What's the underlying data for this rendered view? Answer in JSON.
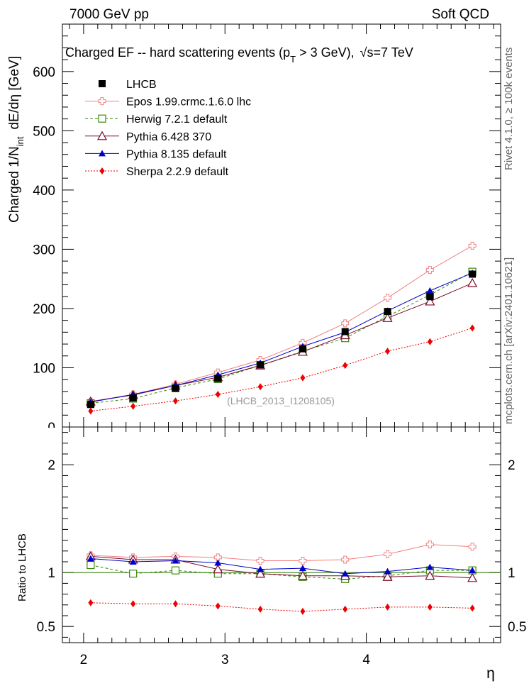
{
  "header": {
    "left": "7000 GeV pp",
    "right": "Soft QCD"
  },
  "side_labels": {
    "top": "Rivet 4.1.0, ≥ 100k events",
    "bottom": "mcplots.cern.ch [arXiv:2401.10621]"
  },
  "chart_data": {
    "type": "line",
    "title_main": "Charged EF -- hard scattering events (p",
    "title_sub": "T",
    "title_end": " > 3 GeV),",
    "title_energy": "√s=7 TeV",
    "ylabel_main": "Charged 1/N",
    "ylabel_sub": "int",
    "ylabel_end": "dE/dη [GeV]",
    "ratio_ylabel": "Ratio to LHCB",
    "xlabel": "η",
    "watermark": "(LHCB_2013_I1208105)",
    "xlim": [
      1.85,
      4.95
    ],
    "ylim": [
      0,
      680
    ],
    "ratio_ylim": [
      0.35,
      2.35
    ],
    "x_ticks": [
      "2",
      "3",
      "4"
    ],
    "y_ticks": [
      "0",
      "100",
      "200",
      "300",
      "400",
      "500",
      "600"
    ],
    "ratio_ticks": [
      "0.5",
      "1",
      "2"
    ],
    "x": [
      2.05,
      2.35,
      2.65,
      2.95,
      3.25,
      3.55,
      3.85,
      4.15,
      4.45,
      4.75
    ],
    "series": [
      {
        "name": "LHCB",
        "color": "#000000",
        "marker": "square-filled",
        "line": "none",
        "values": [
          38,
          49,
          65,
          82,
          105,
          132,
          161,
          195,
          220,
          258
        ]
      },
      {
        "name": "Epos 1.99.crmc.1.6.0 lhc",
        "color": "#f08080",
        "marker": "cross-open",
        "line": "solid",
        "values": [
          43,
          55,
          72,
          92,
          113,
          142,
          175,
          218,
          265,
          306
        ]
      },
      {
        "name": "Herwig 7.2.1 default",
        "color": "#3a8a0c",
        "marker": "square-open",
        "line": "dashed",
        "values": [
          40,
          48,
          66,
          81,
          104,
          128,
          150,
          187,
          223,
          262
        ]
      },
      {
        "name": "Pythia 6.428 370",
        "color": "#7a0a2a",
        "marker": "triangle-open",
        "line": "solid",
        "values": [
          43,
          54,
          70,
          84,
          104,
          127,
          155,
          184,
          212,
          243
        ]
      },
      {
        "name": "Pythia 8.135 default",
        "color": "#0000cc",
        "marker": "triangle-filled",
        "line": "solid",
        "values": [
          42,
          55,
          70,
          88,
          108,
          136,
          160,
          196,
          230,
          260
        ]
      },
      {
        "name": "Sherpa 2.2.9 default",
        "color": "#ee0000",
        "marker": "diamond-filled",
        "line": "dotted",
        "values": [
          27,
          35,
          44,
          55,
          68,
          83,
          104,
          128,
          144,
          167
        ]
      }
    ],
    "ratio_series": [
      {
        "name": "Epos 1.99.crmc.1.6.0 lhc",
        "values": [
          1.16,
          1.14,
          1.15,
          1.14,
          1.11,
          1.11,
          1.12,
          1.17,
          1.26,
          1.24
        ]
      },
      {
        "name": "Herwig 7.2.1 default",
        "values": [
          1.07,
          0.99,
          1.02,
          0.99,
          0.99,
          0.96,
          0.94,
          0.97,
          1.02,
          1.02
        ]
      },
      {
        "name": "Pythia 6.428 370",
        "values": [
          1.15,
          1.12,
          1.12,
          1.03,
          0.99,
          0.97,
          0.97,
          0.96,
          0.97,
          0.95
        ]
      },
      {
        "name": "Pythia 8.135 default",
        "values": [
          1.13,
          1.1,
          1.11,
          1.09,
          1.03,
          1.04,
          0.99,
          1.01,
          1.05,
          1.02
        ]
      },
      {
        "name": "Sherpa 2.2.9 default",
        "values": [
          0.72,
          0.71,
          0.71,
          0.69,
          0.66,
          0.64,
          0.66,
          0.68,
          0.68,
          0.67
        ]
      }
    ]
  }
}
